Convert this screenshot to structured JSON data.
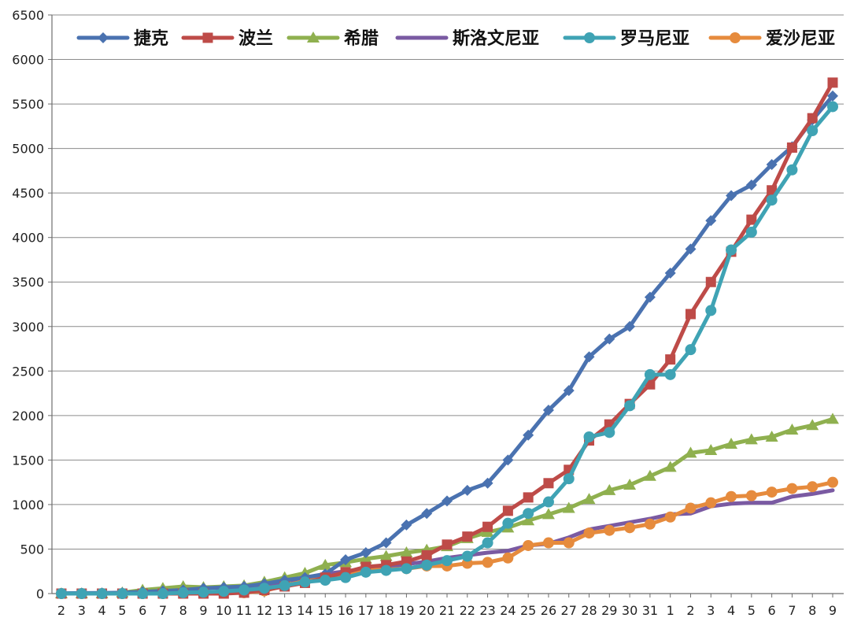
{
  "chart_data": {
    "type": "line",
    "title": "",
    "xlabel": "",
    "ylabel": "",
    "ylim": [
      0,
      6500
    ],
    "yticks": [
      0,
      500,
      1000,
      1500,
      2000,
      2500,
      3000,
      3500,
      4000,
      4500,
      5000,
      5500,
      6000,
      6500
    ],
    "grid": "horizontal",
    "legend_position": "top",
    "categories": [
      "2",
      "3",
      "4",
      "5",
      "6",
      "7",
      "8",
      "9",
      "10",
      "11",
      "12",
      "13",
      "14",
      "15",
      "16",
      "17",
      "18",
      "19",
      "20",
      "21",
      "22",
      "23",
      "24",
      "25",
      "26",
      "27",
      "28",
      "29",
      "30",
      "31",
      "1",
      "2",
      "3",
      "4",
      "5",
      "6",
      "7",
      "8",
      "9"
    ],
    "series": [
      {
        "name": "捷克",
        "color": "#4A72B0",
        "marker": "diamond",
        "values": [
          3,
          5,
          7,
          10,
          20,
          30,
          40,
          60,
          70,
          80,
          110,
          150,
          180,
          220,
          380,
          460,
          570,
          770,
          900,
          1040,
          1160,
          1240,
          1500,
          1780,
          2060,
          2280,
          2660,
          2860,
          3000,
          3330,
          3600,
          3870,
          4190,
          4470,
          4590,
          4820,
          5020,
          5320,
          5590
        ]
      },
      {
        "name": "波兰",
        "color": "#BE4B48",
        "marker": "square",
        "values": [
          0,
          0,
          0,
          0,
          0,
          0,
          0,
          0,
          0,
          10,
          40,
          80,
          120,
          180,
          240,
          300,
          320,
          360,
          430,
          550,
          640,
          750,
          930,
          1080,
          1240,
          1390,
          1720,
          1900,
          2130,
          2350,
          2630,
          3140,
          3500,
          3840,
          4200,
          4530,
          5010,
          5340,
          5740
        ]
      },
      {
        "name": "希腊",
        "color": "#8FB04F",
        "marker": "triangle",
        "values": [
          0,
          0,
          0,
          10,
          40,
          60,
          80,
          70,
          80,
          90,
          130,
          180,
          230,
          320,
          350,
          390,
          420,
          460,
          490,
          530,
          620,
          690,
          740,
          820,
          890,
          960,
          1060,
          1160,
          1220,
          1320,
          1420,
          1580,
          1610,
          1680,
          1730,
          1760,
          1840,
          1890,
          1960
        ]
      },
      {
        "name": "斯洛文尼亚",
        "color": "#7A5AA2",
        "marker": "none",
        "values": [
          0,
          0,
          0,
          0,
          0,
          0,
          0,
          0,
          30,
          50,
          80,
          140,
          170,
          220,
          250,
          280,
          300,
          330,
          360,
          400,
          430,
          460,
          480,
          540,
          560,
          630,
          720,
          760,
          800,
          840,
          890,
          900,
          980,
          1010,
          1020,
          1020,
          1090,
          1120,
          1160
        ]
      },
      {
        "name": "罗马尼亚",
        "color": "#3FA3B4",
        "marker": "circle",
        "values": [
          0,
          0,
          0,
          0,
          0,
          0,
          10,
          15,
          25,
          40,
          60,
          90,
          130,
          150,
          180,
          240,
          260,
          280,
          320,
          370,
          420,
          570,
          790,
          900,
          1030,
          1290,
          1760,
          1810,
          2110,
          2460,
          2460,
          2740,
          3180,
          3860,
          4060,
          4420,
          4760,
          5200,
          5470
        ]
      },
      {
        "name": "爱沙尼亚",
        "color": "#E68B3D",
        "marker": "circle",
        "values": [
          0,
          0,
          0,
          0,
          0,
          0,
          10,
          10,
          10,
          10,
          30,
          90,
          140,
          170,
          200,
          260,
          270,
          280,
          310,
          310,
          340,
          350,
          400,
          540,
          570,
          570,
          680,
          710,
          740,
          780,
          860,
          960,
          1020,
          1090,
          1100,
          1140,
          1180,
          1200,
          1250
        ]
      }
    ]
  }
}
